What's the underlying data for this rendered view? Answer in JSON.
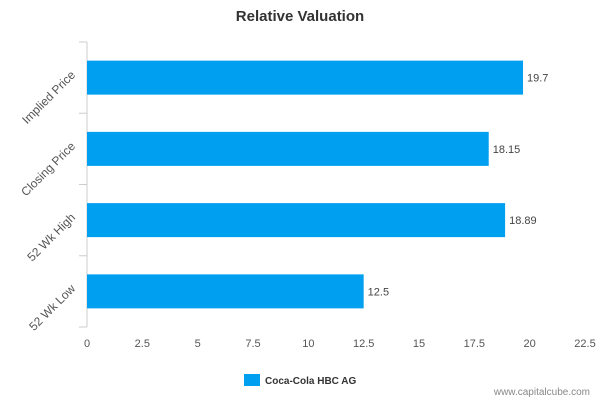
{
  "chart_data": {
    "type": "bar",
    "orientation": "horizontal",
    "title": "Relative Valuation",
    "categories": [
      "Implied Price",
      "Closing Price",
      "52 Wk High",
      "52 Wk Low"
    ],
    "series": [
      {
        "name": "Coca-Cola HBC AG",
        "values": [
          19.7,
          18.15,
          18.89,
          12.5
        ]
      }
    ],
    "data_labels": [
      "19.7",
      "18.15",
      "18.89",
      "12.5"
    ],
    "x_ticks": [
      0,
      2.5,
      5,
      7.5,
      10,
      12.5,
      15,
      17.5,
      20,
      22.5
    ],
    "x_tick_labels": [
      "0",
      "2.5",
      "5",
      "7.5",
      "10",
      "12.5",
      "15",
      "17.5",
      "20",
      "22.5"
    ],
    "xlim": [
      0,
      22.5
    ],
    "xlabel": "",
    "ylabel": "",
    "grid": false,
    "legend_position": "bottom-center",
    "bar_color": "#009fef"
  },
  "footer": {
    "source": "www.capitalcube.com"
  }
}
